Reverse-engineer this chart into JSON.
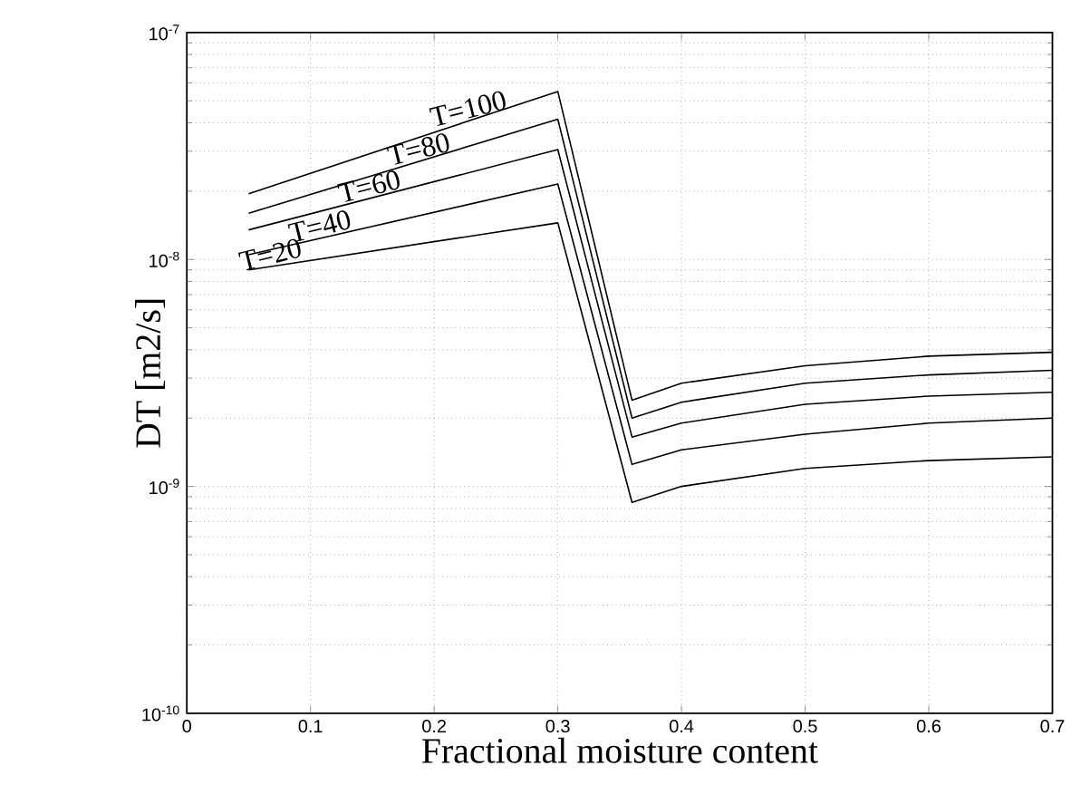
{
  "chart_data": {
    "type": "line",
    "xlabel": "Fractional moisture content",
    "ylabel": "DT [m2/s]",
    "x": [
      0.05,
      0.3,
      0.36,
      0.4,
      0.5,
      0.6,
      0.7
    ],
    "series": [
      {
        "name": "T=100",
        "color": "#000000",
        "values": [
          1.95e-08,
          5.5e-08,
          2.4e-09,
          2.85e-09,
          3.4e-09,
          3.75e-09,
          3.9e-09
        ]
      },
      {
        "name": "T=80",
        "color": "#000000",
        "values": [
          1.6e-08,
          4.15e-08,
          2e-09,
          2.35e-09,
          2.85e-09,
          3.1e-09,
          3.25e-09
        ]
      },
      {
        "name": "T=60",
        "color": "#000000",
        "values": [
          1.35e-08,
          3.05e-08,
          1.65e-09,
          1.9e-09,
          2.3e-09,
          2.5e-09,
          2.6e-09
        ]
      },
      {
        "name": "T=40",
        "color": "#000000",
        "values": [
          1.05e-08,
          2.15e-08,
          1.25e-09,
          1.45e-09,
          1.7e-09,
          1.9e-09,
          2e-09
        ]
      },
      {
        "name": "T=20",
        "color": "#000000",
        "values": [
          9e-09,
          1.45e-08,
          8.5e-10,
          1e-09,
          1.2e-09,
          1.3e-09,
          1.35e-09
        ]
      }
    ],
    "xlim": [
      0,
      0.7
    ],
    "ylim": [
      1e-10,
      1e-07
    ],
    "xticks": [
      0,
      0.1,
      0.2,
      0.3,
      0.4,
      0.5,
      0.6,
      0.7
    ],
    "yticks": [
      {
        "value": 1e-10,
        "label": "10$^{-10}$"
      },
      {
        "value": 1e-09,
        "label": "10$^{-9}$"
      },
      {
        "value": 1e-08,
        "label": "10$^{-8}$"
      },
      {
        "value": 1e-07,
        "label": "10$^{-7}$"
      }
    ],
    "log": true,
    "grid": true,
    "line_style": "solid",
    "marker": "none"
  }
}
